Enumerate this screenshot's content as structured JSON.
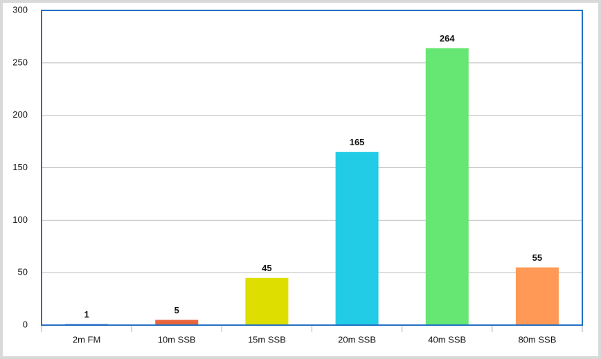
{
  "chart_data": {
    "type": "bar",
    "categories": [
      "2m FM",
      "10m SSB",
      "15m SSB",
      "20m SSB",
      "40m SSB",
      "80m SSB"
    ],
    "values": [
      1,
      5,
      45,
      165,
      264,
      55
    ],
    "colors": [
      "#3366cc",
      "#e8643c",
      "#dede00",
      "#22cce6",
      "#66e673",
      "#ff9955"
    ],
    "ylim": [
      0,
      300
    ],
    "yticks": [
      0,
      50,
      100,
      150,
      200,
      250,
      300
    ],
    "grid": true
  }
}
